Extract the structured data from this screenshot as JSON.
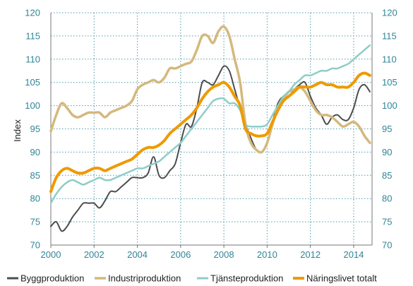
{
  "chart_data": {
    "type": "line",
    "title": "",
    "xlabel": "",
    "ylabel": "Index",
    "xlim": [
      2000,
      2014.85
    ],
    "ylim": [
      70,
      120
    ],
    "x_ticks": [
      2000,
      2002,
      2004,
      2006,
      2008,
      2010,
      2012,
      2014
    ],
    "x_tick_labels": [
      "2000",
      "2002",
      "2004",
      "2006",
      "2008",
      "2010",
      "2012",
      "2014"
    ],
    "y_ticks": [
      70,
      75,
      80,
      85,
      90,
      95,
      100,
      105,
      110,
      115,
      120
    ],
    "y_tick_labels": [
      "70",
      "75",
      "80",
      "85",
      "90",
      "95",
      "100",
      "105",
      "110",
      "115",
      "120"
    ],
    "grid": true,
    "legend_position": "bottom",
    "series": [
      {
        "name": "Byggproduktion",
        "color": "#4d4d4d",
        "width": 2,
        "points": [
          [
            2000,
            74
          ],
          [
            2000.25,
            75
          ],
          [
            2000.5,
            73
          ],
          [
            2000.75,
            74
          ],
          [
            2001,
            76
          ],
          [
            2001.25,
            77.5
          ],
          [
            2001.5,
            79
          ],
          [
            2001.75,
            79
          ],
          [
            2002,
            79
          ],
          [
            2002.25,
            78
          ],
          [
            2002.5,
            79.5
          ],
          [
            2002.75,
            81.5
          ],
          [
            2003,
            81.5
          ],
          [
            2003.25,
            82.5
          ],
          [
            2003.5,
            83.5
          ],
          [
            2003.75,
            84.5
          ],
          [
            2004,
            84.5
          ],
          [
            2004.25,
            84.5
          ],
          [
            2004.5,
            85.5
          ],
          [
            2004.75,
            89
          ],
          [
            2005,
            85
          ],
          [
            2005.25,
            84.5
          ],
          [
            2005.5,
            86
          ],
          [
            2005.75,
            87.5
          ],
          [
            2006,
            92
          ],
          [
            2006.25,
            96
          ],
          [
            2006.5,
            95.5
          ],
          [
            2006.75,
            99.5
          ],
          [
            2007,
            105
          ],
          [
            2007.25,
            105
          ],
          [
            2007.5,
            104.5
          ],
          [
            2007.75,
            106.5
          ],
          [
            2008,
            108.5
          ],
          [
            2008.25,
            107.5
          ],
          [
            2008.5,
            103.5
          ],
          [
            2008.75,
            99.5
          ],
          [
            2009,
            96
          ],
          [
            2009.25,
            93
          ],
          [
            2009.5,
            90.5
          ],
          [
            2009.75,
            90
          ],
          [
            2010,
            92
          ],
          [
            2010.25,
            96.5
          ],
          [
            2010.5,
            100.5
          ],
          [
            2010.75,
            102
          ],
          [
            2011,
            102
          ],
          [
            2011.25,
            103.5
          ],
          [
            2011.5,
            104.5
          ],
          [
            2011.75,
            105
          ],
          [
            2012,
            102
          ],
          [
            2012.25,
            99.5
          ],
          [
            2012.5,
            98
          ],
          [
            2012.75,
            96
          ],
          [
            2013,
            97.5
          ],
          [
            2013.25,
            98
          ],
          [
            2013.5,
            97
          ],
          [
            2013.75,
            97
          ],
          [
            2014,
            99.5
          ],
          [
            2014.25,
            103.5
          ],
          [
            2014.5,
            104.5
          ],
          [
            2014.75,
            103
          ]
        ]
      },
      {
        "name": "Industriproduktion",
        "color": "#d4b97c",
        "width": 3.5,
        "points": [
          [
            2000,
            94.5
          ],
          [
            2000.25,
            98
          ],
          [
            2000.5,
            100.5
          ],
          [
            2000.75,
            99.5
          ],
          [
            2001,
            98
          ],
          [
            2001.25,
            97.5
          ],
          [
            2001.5,
            98
          ],
          [
            2001.75,
            98.5
          ],
          [
            2002,
            98.5
          ],
          [
            2002.25,
            98.5
          ],
          [
            2002.5,
            97.5
          ],
          [
            2002.75,
            98.5
          ],
          [
            2003,
            99
          ],
          [
            2003.25,
            99.5
          ],
          [
            2003.5,
            100
          ],
          [
            2003.75,
            101
          ],
          [
            2004,
            103.5
          ],
          [
            2004.25,
            104.5
          ],
          [
            2004.5,
            105
          ],
          [
            2004.75,
            105.5
          ],
          [
            2005,
            105
          ],
          [
            2005.25,
            106
          ],
          [
            2005.5,
            108
          ],
          [
            2005.75,
            108
          ],
          [
            2006,
            108.5
          ],
          [
            2006.25,
            109
          ],
          [
            2006.5,
            109.5
          ],
          [
            2006.75,
            112
          ],
          [
            2007,
            115
          ],
          [
            2007.25,
            115
          ],
          [
            2007.5,
            113.5
          ],
          [
            2007.75,
            116
          ],
          [
            2008,
            117
          ],
          [
            2008.25,
            115
          ],
          [
            2008.5,
            110
          ],
          [
            2008.75,
            105
          ],
          [
            2009,
            96
          ],
          [
            2009.25,
            92
          ],
          [
            2009.5,
            90.5
          ],
          [
            2009.75,
            90
          ],
          [
            2010,
            92
          ],
          [
            2010.25,
            96
          ],
          [
            2010.5,
            99.5
          ],
          [
            2010.75,
            101.5
          ],
          [
            2011,
            103
          ],
          [
            2011.25,
            103.5
          ],
          [
            2011.5,
            104
          ],
          [
            2011.75,
            103
          ],
          [
            2012,
            101
          ],
          [
            2012.25,
            99
          ],
          [
            2012.5,
            98
          ],
          [
            2012.75,
            98
          ],
          [
            2013,
            97.5
          ],
          [
            2013.25,
            96.5
          ],
          [
            2013.5,
            95.5
          ],
          [
            2013.75,
            96
          ],
          [
            2014,
            96.5
          ],
          [
            2014.25,
            95.5
          ],
          [
            2014.5,
            93.5
          ],
          [
            2014.75,
            92
          ]
        ]
      },
      {
        "name": "Tjänsteproduktion",
        "color": "#8dcdc8",
        "width": 2.5,
        "points": [
          [
            2000,
            79
          ],
          [
            2000.25,
            81
          ],
          [
            2000.5,
            82.5
          ],
          [
            2000.75,
            83.5
          ],
          [
            2001,
            84
          ],
          [
            2001.25,
            83.5
          ],
          [
            2001.5,
            83
          ],
          [
            2001.75,
            83.5
          ],
          [
            2002,
            84
          ],
          [
            2002.25,
            84.5
          ],
          [
            2002.5,
            84
          ],
          [
            2002.75,
            84
          ],
          [
            2003,
            84.5
          ],
          [
            2003.25,
            85
          ],
          [
            2003.5,
            85.5
          ],
          [
            2003.75,
            86
          ],
          [
            2004,
            86.5
          ],
          [
            2004.25,
            86.5
          ],
          [
            2004.5,
            87
          ],
          [
            2004.75,
            87.5
          ],
          [
            2005,
            88
          ],
          [
            2005.25,
            89
          ],
          [
            2005.5,
            90
          ],
          [
            2005.75,
            91
          ],
          [
            2006,
            92
          ],
          [
            2006.25,
            93.5
          ],
          [
            2006.5,
            95
          ],
          [
            2006.75,
            96.5
          ],
          [
            2007,
            98
          ],
          [
            2007.25,
            99.5
          ],
          [
            2007.5,
            101
          ],
          [
            2007.75,
            101.5
          ],
          [
            2008,
            101.5
          ],
          [
            2008.25,
            100.5
          ],
          [
            2008.5,
            100.5
          ],
          [
            2008.75,
            99
          ],
          [
            2009,
            96
          ],
          [
            2009.25,
            95.5
          ],
          [
            2009.5,
            95.5
          ],
          [
            2009.75,
            95.5
          ],
          [
            2010,
            96
          ],
          [
            2010.25,
            98
          ],
          [
            2010.5,
            100
          ],
          [
            2010.75,
            102
          ],
          [
            2011,
            103
          ],
          [
            2011.25,
            104.5
          ],
          [
            2011.5,
            105.5
          ],
          [
            2011.75,
            106.5
          ],
          [
            2012,
            106.5
          ],
          [
            2012.25,
            107
          ],
          [
            2012.5,
            107.5
          ],
          [
            2012.75,
            107.5
          ],
          [
            2013,
            108
          ],
          [
            2013.25,
            108
          ],
          [
            2013.5,
            108.5
          ],
          [
            2013.75,
            109
          ],
          [
            2014,
            110
          ],
          [
            2014.25,
            111
          ],
          [
            2014.5,
            112
          ],
          [
            2014.75,
            113
          ]
        ]
      },
      {
        "name": "Näringslivet totalt",
        "color": "#ee9a00",
        "width": 4,
        "points": [
          [
            2000,
            81.5
          ],
          [
            2000.25,
            84.5
          ],
          [
            2000.5,
            86
          ],
          [
            2000.75,
            86.5
          ],
          [
            2001,
            86
          ],
          [
            2001.25,
            85.5
          ],
          [
            2001.5,
            85.5
          ],
          [
            2001.75,
            86
          ],
          [
            2002,
            86.5
          ],
          [
            2002.25,
            86.5
          ],
          [
            2002.5,
            86
          ],
          [
            2002.75,
            86.5
          ],
          [
            2003,
            87
          ],
          [
            2003.25,
            87.5
          ],
          [
            2003.5,
            88
          ],
          [
            2003.75,
            88.5
          ],
          [
            2004,
            89.5
          ],
          [
            2004.25,
            90.5
          ],
          [
            2004.5,
            91
          ],
          [
            2004.75,
            91
          ],
          [
            2005,
            91.5
          ],
          [
            2005.25,
            92.5
          ],
          [
            2005.5,
            94
          ],
          [
            2005.75,
            95
          ],
          [
            2006,
            96
          ],
          [
            2006.25,
            97
          ],
          [
            2006.5,
            98
          ],
          [
            2006.75,
            99.5
          ],
          [
            2007,
            101.5
          ],
          [
            2007.25,
            103
          ],
          [
            2007.5,
            104
          ],
          [
            2007.75,
            104.5
          ],
          [
            2008,
            105
          ],
          [
            2008.25,
            104
          ],
          [
            2008.5,
            102
          ],
          [
            2008.75,
            100
          ],
          [
            2009,
            95
          ],
          [
            2009.25,
            94
          ],
          [
            2009.5,
            93.5
          ],
          [
            2009.75,
            93.5
          ],
          [
            2010,
            94
          ],
          [
            2010.25,
            96.5
          ],
          [
            2010.5,
            99
          ],
          [
            2010.75,
            101
          ],
          [
            2011,
            102
          ],
          [
            2011.25,
            103
          ],
          [
            2011.5,
            104
          ],
          [
            2011.75,
            104
          ],
          [
            2012,
            104
          ],
          [
            2012.25,
            104.5
          ],
          [
            2012.5,
            105
          ],
          [
            2012.75,
            104.5
          ],
          [
            2013,
            104.5
          ],
          [
            2013.25,
            104
          ],
          [
            2013.5,
            104
          ],
          [
            2013.75,
            104
          ],
          [
            2014,
            105
          ],
          [
            2014.25,
            106.5
          ],
          [
            2014.5,
            107
          ],
          [
            2014.75,
            106.5
          ]
        ]
      }
    ]
  }
}
